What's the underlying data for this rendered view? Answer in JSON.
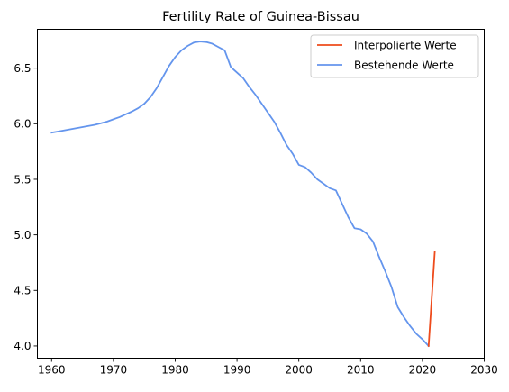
{
  "chart_data": {
    "type": "line",
    "title": "Fertility Rate of Guinea-Bissau",
    "xlabel": "",
    "ylabel": "",
    "xlim": [
      1957.7,
      2030
    ],
    "ylim": [
      3.89,
      6.85
    ],
    "xticks": [
      1960,
      1970,
      1980,
      1990,
      2000,
      2010,
      2020,
      2030
    ],
    "yticks": [
      4.0,
      4.5,
      5.0,
      5.5,
      6.0,
      6.5
    ],
    "ytick_labels": [
      "4.0",
      "4.5",
      "5.0",
      "5.5",
      "6.0",
      "6.5"
    ],
    "grid": false,
    "legend_position": "top-right",
    "series": [
      {
        "name": "Interpolierte Werte",
        "color": "#ee4b1c",
        "x": [
          2021,
          2022
        ],
        "y": [
          4.0,
          4.85
        ]
      },
      {
        "name": "Bestehende Werte",
        "color": "#6495ed",
        "x": [
          1960,
          1961,
          1962,
          1963,
          1964,
          1965,
          1966,
          1967,
          1968,
          1969,
          1970,
          1971,
          1972,
          1973,
          1974,
          1975,
          1976,
          1977,
          1978,
          1979,
          1980,
          1981,
          1982,
          1983,
          1984,
          1985,
          1986,
          1987,
          1988,
          1989,
          1990,
          1991,
          1992,
          1993,
          1994,
          1995,
          1996,
          1997,
          1998,
          1999,
          2000,
          2001,
          2002,
          2003,
          2004,
          2005,
          2006,
          2007,
          2008,
          2009,
          2010,
          2011,
          2012,
          2013,
          2014,
          2015,
          2016,
          2017,
          2018,
          2019,
          2020,
          2021
        ],
        "y": [
          5.92,
          5.93,
          5.94,
          5.95,
          5.96,
          5.97,
          5.98,
          5.99,
          6.005,
          6.02,
          6.04,
          6.06,
          6.085,
          6.11,
          6.14,
          6.18,
          6.24,
          6.32,
          6.42,
          6.52,
          6.6,
          6.66,
          6.7,
          6.73,
          6.74,
          6.735,
          6.72,
          6.69,
          6.66,
          6.51,
          6.46,
          6.41,
          6.33,
          6.26,
          6.18,
          6.1,
          6.02,
          5.92,
          5.81,
          5.73,
          5.63,
          5.61,
          5.56,
          5.5,
          5.46,
          5.42,
          5.4,
          5.28,
          5.16,
          5.06,
          5.05,
          5.01,
          4.94,
          4.8,
          4.67,
          4.53,
          4.35,
          4.26,
          4.18,
          4.11,
          4.06,
          4.0
        ]
      }
    ]
  }
}
